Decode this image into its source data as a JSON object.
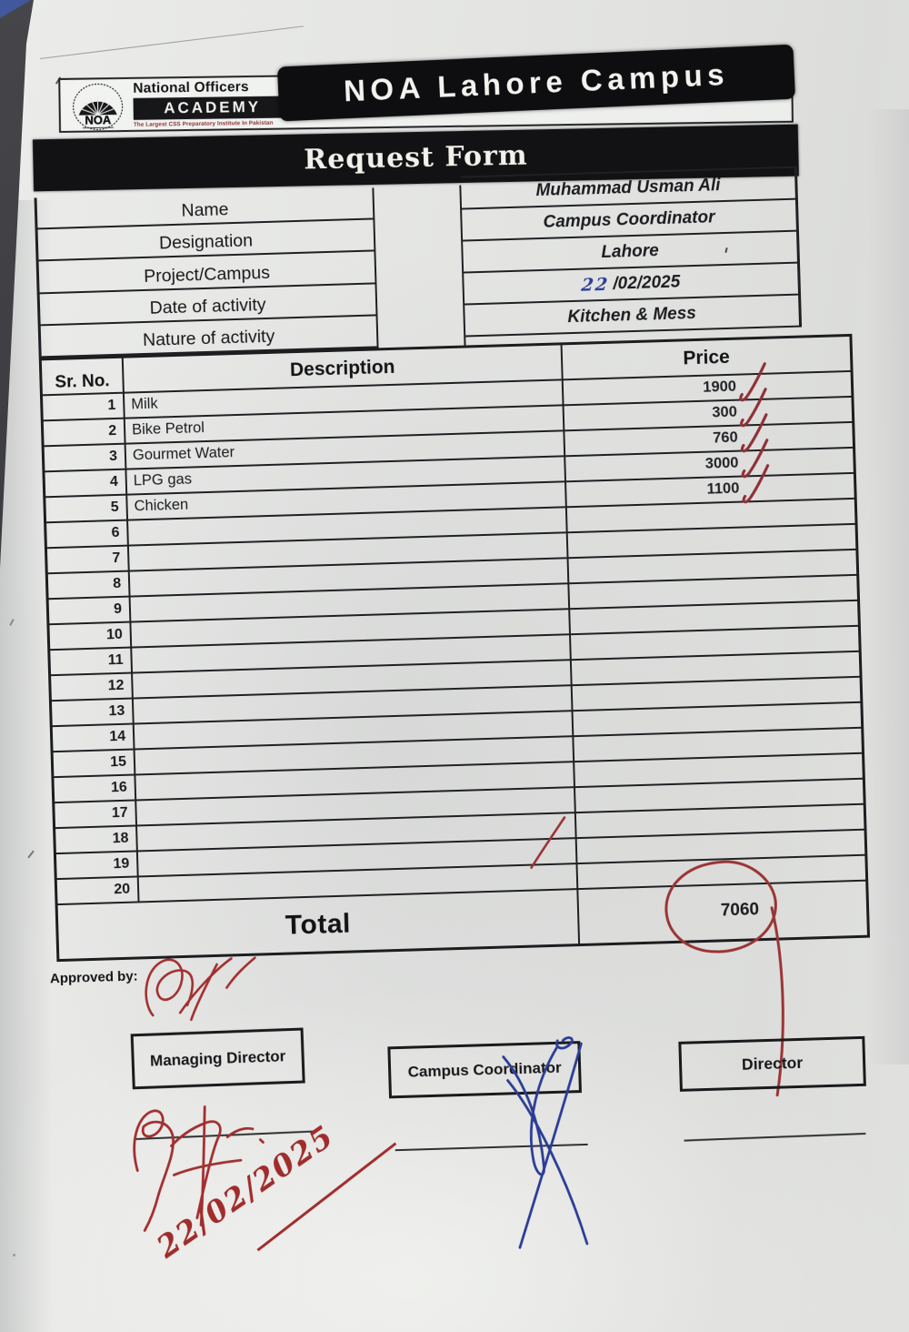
{
  "header": {
    "org_name_line": "National Officers",
    "org_academy": "ACADEMY",
    "org_tagline": "The Largest CSS Preparatory Institute In Pakistan",
    "emblem_text": "NOA",
    "campus_banner": "NOA Lahore Campus",
    "form_title": "Request Form"
  },
  "info_fields": [
    {
      "label": "Name",
      "handwritten": "",
      "value": "Muhammad Usman Ali"
    },
    {
      "label": "Designation",
      "handwritten": "",
      "value": "Campus Coordinator"
    },
    {
      "label": "Project/Campus",
      "handwritten": "",
      "value": "Lahore"
    },
    {
      "label": "Date of activity",
      "handwritten": "22",
      "value": "/02/2025"
    },
    {
      "label": "Nature of activity",
      "handwritten": "",
      "value": "Kitchen & Mess"
    }
  ],
  "table": {
    "headers": {
      "sr": "Sr. No.",
      "description": "Description",
      "price": "Price"
    },
    "rows": [
      {
        "sr": "1",
        "description": "Milk",
        "price": "1900",
        "checked": true
      },
      {
        "sr": "2",
        "description": "Bike Petrol",
        "price": "300",
        "checked": true
      },
      {
        "sr": "3",
        "description": "Gourmet Water",
        "price": "760",
        "checked": true
      },
      {
        "sr": "4",
        "description": "LPG gas",
        "price": "3000",
        "checked": true
      },
      {
        "sr": "5",
        "description": "Chicken",
        "price": "1100",
        "checked": true
      },
      {
        "sr": "6",
        "description": "",
        "price": "",
        "checked": false
      },
      {
        "sr": "7",
        "description": "",
        "price": "",
        "checked": false
      },
      {
        "sr": "8",
        "description": "",
        "price": "",
        "checked": false
      },
      {
        "sr": "9",
        "description": "",
        "price": "",
        "checked": false
      },
      {
        "sr": "10",
        "description": "",
        "price": "",
        "checked": false
      },
      {
        "sr": "11",
        "description": "",
        "price": "",
        "checked": false
      },
      {
        "sr": "12",
        "description": "",
        "price": "",
        "checked": false
      },
      {
        "sr": "13",
        "description": "",
        "price": "",
        "checked": false
      },
      {
        "sr": "14",
        "description": "",
        "price": "",
        "checked": false
      },
      {
        "sr": "15",
        "description": "",
        "price": "",
        "checked": false
      },
      {
        "sr": "16",
        "description": "",
        "price": "",
        "checked": false
      },
      {
        "sr": "17",
        "description": "",
        "price": "",
        "checked": false
      },
      {
        "sr": "18",
        "description": "",
        "price": "",
        "checked": false
      },
      {
        "sr": "19",
        "description": "",
        "price": "",
        "checked": false
      },
      {
        "sr": "20",
        "description": "",
        "price": "",
        "checked": false
      }
    ],
    "total_label": "Total",
    "total_value": "7060"
  },
  "approval": {
    "approved_by_label": "Approved by:",
    "signature_boxes": [
      "Managing Director",
      "Campus Coordinator",
      "Director"
    ],
    "handwritten_date": "22/02/2025"
  },
  "ink_colors": {
    "red": "#9a3434",
    "blue": "#2b3d96"
  }
}
